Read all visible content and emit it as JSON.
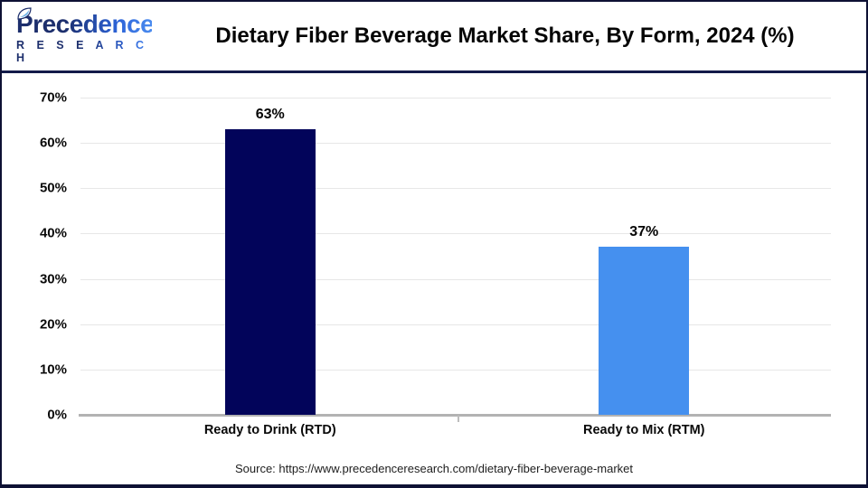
{
  "header": {
    "logo": {
      "name": "Precedence",
      "subtitle": "R E S E A R C H"
    },
    "title": "Dietary Fiber Beverage Market Share, By Form, 2024 (%)"
  },
  "chart_data": {
    "type": "bar",
    "title": "Dietary Fiber Beverage Market Share, By Form, 2024 (%)",
    "categories": [
      "Ready to Drink (RTD)",
      "Ready to Mix (RTM)"
    ],
    "values": [
      63,
      37
    ],
    "value_labels": [
      "63%",
      "37%"
    ],
    "bar_colors": [
      "#02045A",
      "#4590EF"
    ],
    "xlabel": "",
    "ylabel": "",
    "ylim": [
      0,
      70
    ],
    "yticks": [
      0,
      10,
      20,
      30,
      40,
      50,
      60,
      70
    ],
    "ytick_labels": [
      "0%",
      "10%",
      "20%",
      "30%",
      "40%",
      "50%",
      "60%",
      "70%"
    ],
    "grid": true,
    "legend": false
  },
  "footer": {
    "source_text": "Source: https://www.precedenceresearch.com/dietary-fiber-beverage-market"
  },
  "colors": {
    "brand_navy": "#1C2E6C",
    "brand_blue": "#2C63D8",
    "bar_navy": "#02045A",
    "bar_blue": "#4590EF",
    "divider_navy": "#131B4A"
  }
}
